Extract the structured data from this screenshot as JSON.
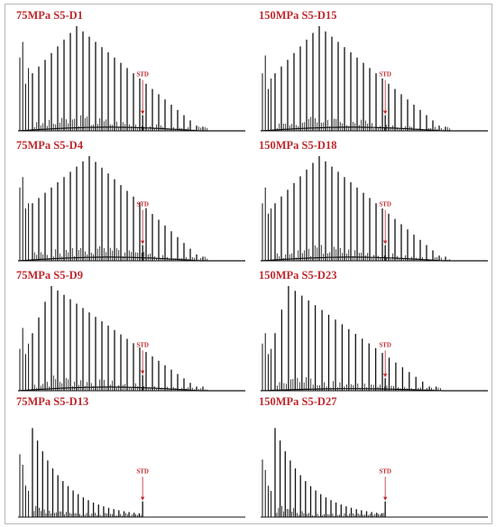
{
  "chart_data": [
    {
      "type": "line",
      "title": "75MPa S5-D1",
      "annotation": "STD",
      "n_peaks": 28,
      "max_peak_index": 7,
      "tail_start": 12,
      "tail_end": 34,
      "std_position": 0.58,
      "std_height": 0.15,
      "std_label_height": 0.52,
      "baseline_hump": 0.035,
      "early_spikes": [
        0.7,
        0.85,
        0.45,
        0.6
      ],
      "colors": {
        "trace": "#111111",
        "annotation": "#c0282d"
      }
    },
    {
      "type": "line",
      "title": "150MPa S5-D15",
      "annotation": "STD",
      "n_peaks": 28,
      "max_peak_index": 7,
      "tail_start": 12,
      "tail_end": 34,
      "std_position": 0.58,
      "std_height": 0.15,
      "std_label_height": 0.52,
      "baseline_hump": 0.035,
      "early_spikes": [
        0.55,
        0.72,
        0.4,
        0.5
      ],
      "colors": {
        "trace": "#111111",
        "annotation": "#c0282d"
      }
    },
    {
      "type": "line",
      "title": "75MPa S5-D4",
      "annotation": "STD",
      "n_peaks": 28,
      "max_peak_index": 9,
      "tail_start": 12,
      "tail_end": 34,
      "std_position": 0.58,
      "std_height": 0.15,
      "std_label_height": 0.52,
      "baseline_hump": 0.035,
      "early_spikes": [
        0.7,
        0.8,
        0.5,
        0.55
      ],
      "colors": {
        "trace": "#111111",
        "annotation": "#c0282d"
      }
    },
    {
      "type": "line",
      "title": "150MPa S5-D18",
      "annotation": "STD",
      "n_peaks": 28,
      "max_peak_index": 7,
      "tail_start": 12,
      "tail_end": 34,
      "std_position": 0.58,
      "std_height": 0.15,
      "std_label_height": 0.52,
      "baseline_hump": 0.035,
      "early_spikes": [
        0.55,
        0.7,
        0.45,
        0.5
      ],
      "colors": {
        "trace": "#111111",
        "annotation": "#c0282d"
      }
    },
    {
      "type": "line",
      "title": "75MPa S5-D9",
      "annotation": "STD",
      "n_peaks": 28,
      "max_peak_index": 3,
      "tail_start": 10,
      "tail_end": 34,
      "std_position": 0.58,
      "std_height": 0.15,
      "std_label_height": 0.42,
      "baseline_hump": 0.035,
      "early_spikes": [
        0.4,
        0.6,
        0.35,
        0.45
      ],
      "colors": {
        "trace": "#111111",
        "annotation": "#c0282d"
      }
    },
    {
      "type": "line",
      "title": "150MPa S5-D23",
      "annotation": "STD",
      "n_peaks": 25,
      "max_peak_index": 2,
      "tail_start": 8,
      "tail_end": 30,
      "std_position": 0.58,
      "std_height": 0.12,
      "std_label_height": 0.42,
      "baseline_hump": 0.02,
      "early_spikes": [
        0.45,
        0.55,
        0.35,
        0.4
      ],
      "colors": {
        "trace": "#111111",
        "annotation": "#c0282d"
      }
    },
    {
      "type": "line",
      "title": "75MPa S5-D13",
      "annotation": "STD",
      "n_peaks": 22,
      "max_peak_index": 0,
      "tail_start": 5,
      "tail_end": 20,
      "std_position": 0.58,
      "std_height": 0.15,
      "std_label_height": 0.42,
      "baseline_hump": 0.0,
      "early_spikes": [
        0.6,
        0.5,
        0.3,
        0.25
      ],
      "colors": {
        "trace": "#111111",
        "annotation": "#c0282d"
      }
    },
    {
      "type": "line",
      "title": "150MPa S5-D27",
      "annotation": "STD",
      "n_peaks": 22,
      "max_peak_index": 0,
      "tail_start": 5,
      "tail_end": 20,
      "std_position": 0.58,
      "std_height": 0.15,
      "std_label_height": 0.42,
      "baseline_hump": 0.0,
      "early_spikes": [
        0.55,
        0.45,
        0.3,
        0.25
      ],
      "colors": {
        "trace": "#111111",
        "annotation": "#c0282d"
      }
    }
  ]
}
